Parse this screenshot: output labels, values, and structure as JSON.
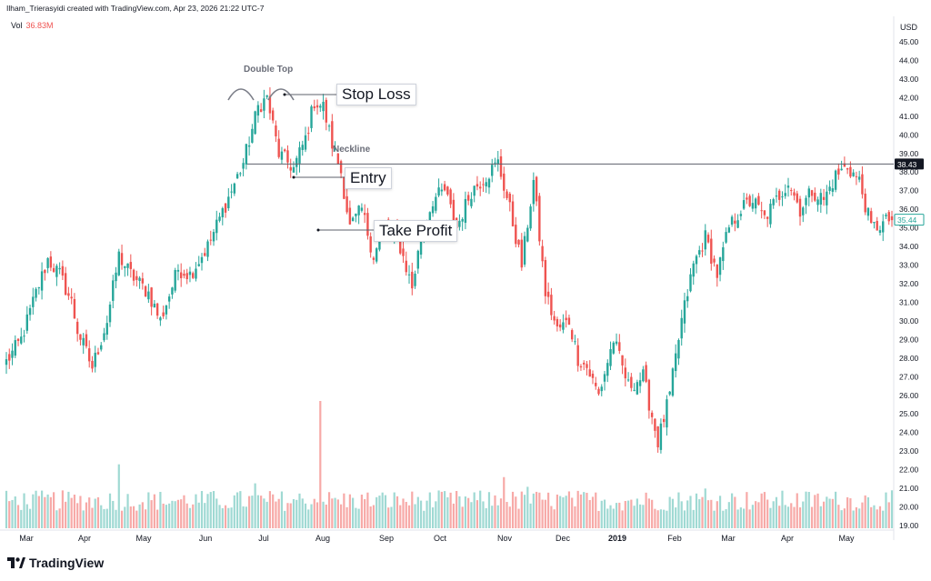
{
  "header": {
    "credit": "Ilham_Trierasyidi created with TradingView.com, Apr 23, 2026 21:22 UTC-7",
    "vol_label": "Vol",
    "vol_value": "36.83M"
  },
  "footer": {
    "brand": "TradingView"
  },
  "colors": {
    "up": "#26a69a",
    "down": "#ef5350",
    "vol_up": "#9fd9d3",
    "vol_down": "#f7a9a7",
    "axis": "#e0e3eb",
    "text": "#131722"
  },
  "annotations": {
    "double_top": "Double Top",
    "neckline": "Neckline",
    "stop_loss": "Stop Loss",
    "entry": "Entry",
    "take_profit": "Take Profit"
  },
  "chart_data": {
    "type": "candlestick",
    "title": "",
    "currency": "USD",
    "ylim": [
      19.0,
      45.0
    ],
    "y_ticks": [
      "45.00",
      "44.00",
      "43.00",
      "42.00",
      "41.00",
      "40.00",
      "39.00",
      "38.00",
      "37.00",
      "36.00",
      "35.00",
      "34.00",
      "33.00",
      "32.00",
      "31.00",
      "30.00",
      "29.00",
      "28.00",
      "27.00",
      "26.00",
      "25.00",
      "24.00",
      "23.00",
      "22.00",
      "21.00",
      "20.00",
      "19.00"
    ],
    "x_ticks": [
      "Mar",
      "Apr",
      "May",
      "Jun",
      "Jul",
      "Aug",
      "Sep",
      "Oct",
      "Nov",
      "Dec",
      "2019",
      "Feb",
      "Mar",
      "Apr",
      "May"
    ],
    "neckline_price": 38.43,
    "neckline_label": "38.43",
    "last_price": 35.44,
    "last_price_label": "35.44",
    "path_dates": [
      0,
      5,
      10,
      14,
      18,
      22,
      24,
      29,
      34,
      38,
      42,
      48,
      52,
      58,
      62,
      68,
      72,
      76,
      80,
      85,
      88,
      92,
      97,
      101,
      104,
      107,
      110,
      113,
      116,
      120,
      124,
      128,
      132,
      137,
      140,
      144,
      148,
      152,
      157,
      162,
      166,
      170,
      174,
      178,
      182,
      186,
      190,
      193,
      196,
      200,
      205,
      210,
      215,
      220,
      224,
      228,
      232,
      236,
      240,
      244,
      248,
      252,
      256,
      260,
      264,
      268,
      272,
      276,
      280,
      284,
      288,
      292,
      296,
      298
    ],
    "path_prices": [
      27.8,
      29.0,
      31.5,
      33.3,
      32.5,
      31.0,
      29.5,
      27.5,
      30.0,
      33.5,
      32.5,
      31.5,
      30.0,
      32.8,
      32.5,
      34.0,
      35.5,
      37.0,
      38.5,
      41.5,
      42.0,
      39.0,
      38.2,
      39.8,
      41.8,
      41.5,
      39.5,
      38.0,
      35.0,
      36.0,
      33.5,
      35.0,
      34.5,
      31.8,
      34.5,
      36.5,
      37.0,
      35.0,
      37.0,
      37.8,
      38.5,
      36.0,
      33.0,
      37.5,
      31.5,
      29.5,
      30.0,
      28.0,
      27.5,
      26.0,
      29.0,
      26.5,
      27.0,
      23.5,
      26.0,
      30.0,
      33.0,
      34.5,
      32.5,
      35.0,
      36.0,
      36.5,
      35.5,
      36.5,
      37.5,
      36.0,
      37.0,
      36.5,
      37.8,
      38.3,
      37.5,
      35.0,
      35.2,
      35.44
    ],
    "volume_unit": "M",
    "volume_max": 36.83
  }
}
